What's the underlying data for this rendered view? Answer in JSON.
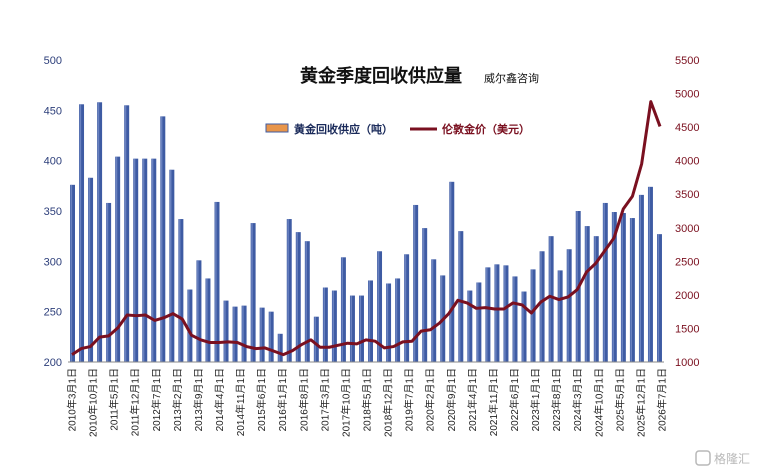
{
  "chart_data": {
    "type": "bar+line",
    "title": "黄金季度回收供应量",
    "source": "威尔鑫咨询",
    "legend": {
      "placement": "top-center",
      "items": [
        {
          "label": "黄金回收供应（吨）",
          "kind": "bar",
          "color": "#3e5ba3"
        },
        {
          "label": "伦敦金价（美元）",
          "kind": "line",
          "color": "#7a1020"
        }
      ]
    },
    "y_left": {
      "range": [
        200,
        500
      ],
      "ticks": [
        "200",
        "250",
        "300",
        "350",
        "400",
        "450",
        "500"
      ]
    },
    "y_right": {
      "range": [
        1000,
        5500
      ],
      "ticks": [
        "1000",
        "1500",
        "2000",
        "2500",
        "3000",
        "3500",
        "4000",
        "4500",
        "5000",
        "5500"
      ]
    },
    "x_labels": [
      "2010年3月1日",
      "2010年10月1日",
      "2011年5月1日",
      "2011年12月1日",
      "2012年7月1日",
      "2013年2月1日",
      "2013年9月1日",
      "2014年4月1日",
      "2014年11月1日",
      "2015年6月1日",
      "2016年1月1日",
      "2016年8月1日",
      "2017年3月1日",
      "2017年10月1日",
      "2018年5月1日",
      "2018年12月1日",
      "2019年7月1日",
      "2020年2月1日",
      "2020年9月1日",
      "2021年4月1日",
      "2021年11月1日",
      "2022年6月1日",
      "2023年1月1日",
      "2023年8月1日",
      "2024年3月1日",
      "2024年10月1日",
      "2025年5月1日",
      "2025年12月1日",
      "2026年7月1日"
    ],
    "series": [
      {
        "name": "黄金回收供应（吨）",
        "axis": "left",
        "type": "bar",
        "values": [
          376,
          456,
          383,
          458,
          358,
          404,
          455,
          402,
          402,
          402,
          444,
          391,
          342,
          272,
          301,
          283,
          359,
          261,
          255,
          256,
          338,
          254,
          250,
          228,
          342,
          329,
          320,
          245,
          274,
          271,
          304,
          266,
          266,
          281,
          310,
          278,
          283,
          307,
          356,
          333,
          302,
          286,
          379,
          330,
          271,
          279,
          294,
          297,
          296,
          285,
          270,
          292,
          310,
          325,
          291,
          312,
          350,
          335,
          325,
          358,
          349,
          348,
          343,
          366,
          374,
          327
        ]
      },
      {
        "name": "伦敦金价（美元）",
        "axis": "right",
        "type": "line",
        "values": [
          1110,
          1200,
          1230,
          1370,
          1390,
          1510,
          1700,
          1690,
          1700,
          1620,
          1660,
          1720,
          1640,
          1400,
          1330,
          1290,
          1290,
          1300,
          1290,
          1230,
          1200,
          1210,
          1160,
          1110,
          1170,
          1260,
          1330,
          1220,
          1220,
          1250,
          1280,
          1270,
          1330,
          1310,
          1210,
          1230,
          1300,
          1310,
          1460,
          1480,
          1580,
          1720,
          1920,
          1880,
          1800,
          1810,
          1790,
          1790,
          1880,
          1850,
          1730,
          1890,
          1980,
          1930,
          1970,
          2080,
          2340,
          2470,
          2660,
          2850,
          3280,
          3470,
          3950,
          4880,
          4510
        ]
      }
    ],
    "grid": false
  },
  "watermark": "格隆汇"
}
